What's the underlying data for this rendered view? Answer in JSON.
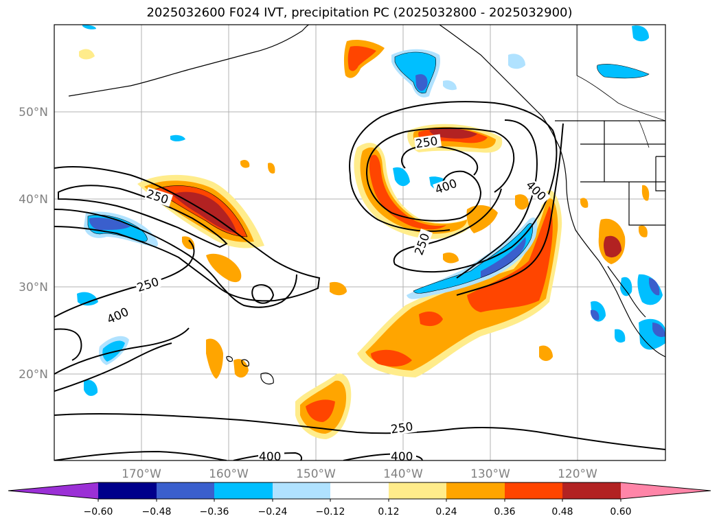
{
  "title": "2025032600 F024 IVT, precipitation PC (2025032800 - 2025032900)",
  "lat_labels": [
    "50°N",
    "40°N",
    "30°N",
    "20°N"
  ],
  "lon_labels": [
    "170°W",
    "160°W",
    "150°W",
    "140°W",
    "130°W",
    "120°W"
  ],
  "ivt_contour_labels": [
    "250",
    "250",
    "400",
    "400",
    "250",
    "250",
    "400",
    "250",
    "400",
    "400"
  ],
  "colorbar": {
    "tick_labels": [
      "−0.60",
      "−0.48",
      "−0.36",
      "−0.24",
      "−0.12",
      "0.12",
      "0.24",
      "0.36",
      "0.48",
      "0.60"
    ],
    "colors": [
      "#9b30d6",
      "#00008b",
      "#3a5fcd",
      "#00bfff",
      "#b0e2ff",
      "#ffffff",
      "#ffec8b",
      "#ffa500",
      "#ff4500",
      "#b22222",
      "#ff85a8"
    ]
  },
  "chart_data": {
    "type": "map",
    "projection": "lat-lon",
    "lon_range": [
      "180°W",
      "110°W"
    ],
    "lat_range": [
      "10°N",
      "60°N"
    ],
    "grid": true,
    "variables": [
      "IVT contours (250, 400)",
      "precipitation PC shading"
    ],
    "colorbar_levels": [
      -0.6,
      -0.48,
      -0.36,
      -0.24,
      -0.12,
      0.12,
      0.24,
      0.36,
      0.48,
      0.6
    ],
    "colorbar_extend": "both"
  }
}
